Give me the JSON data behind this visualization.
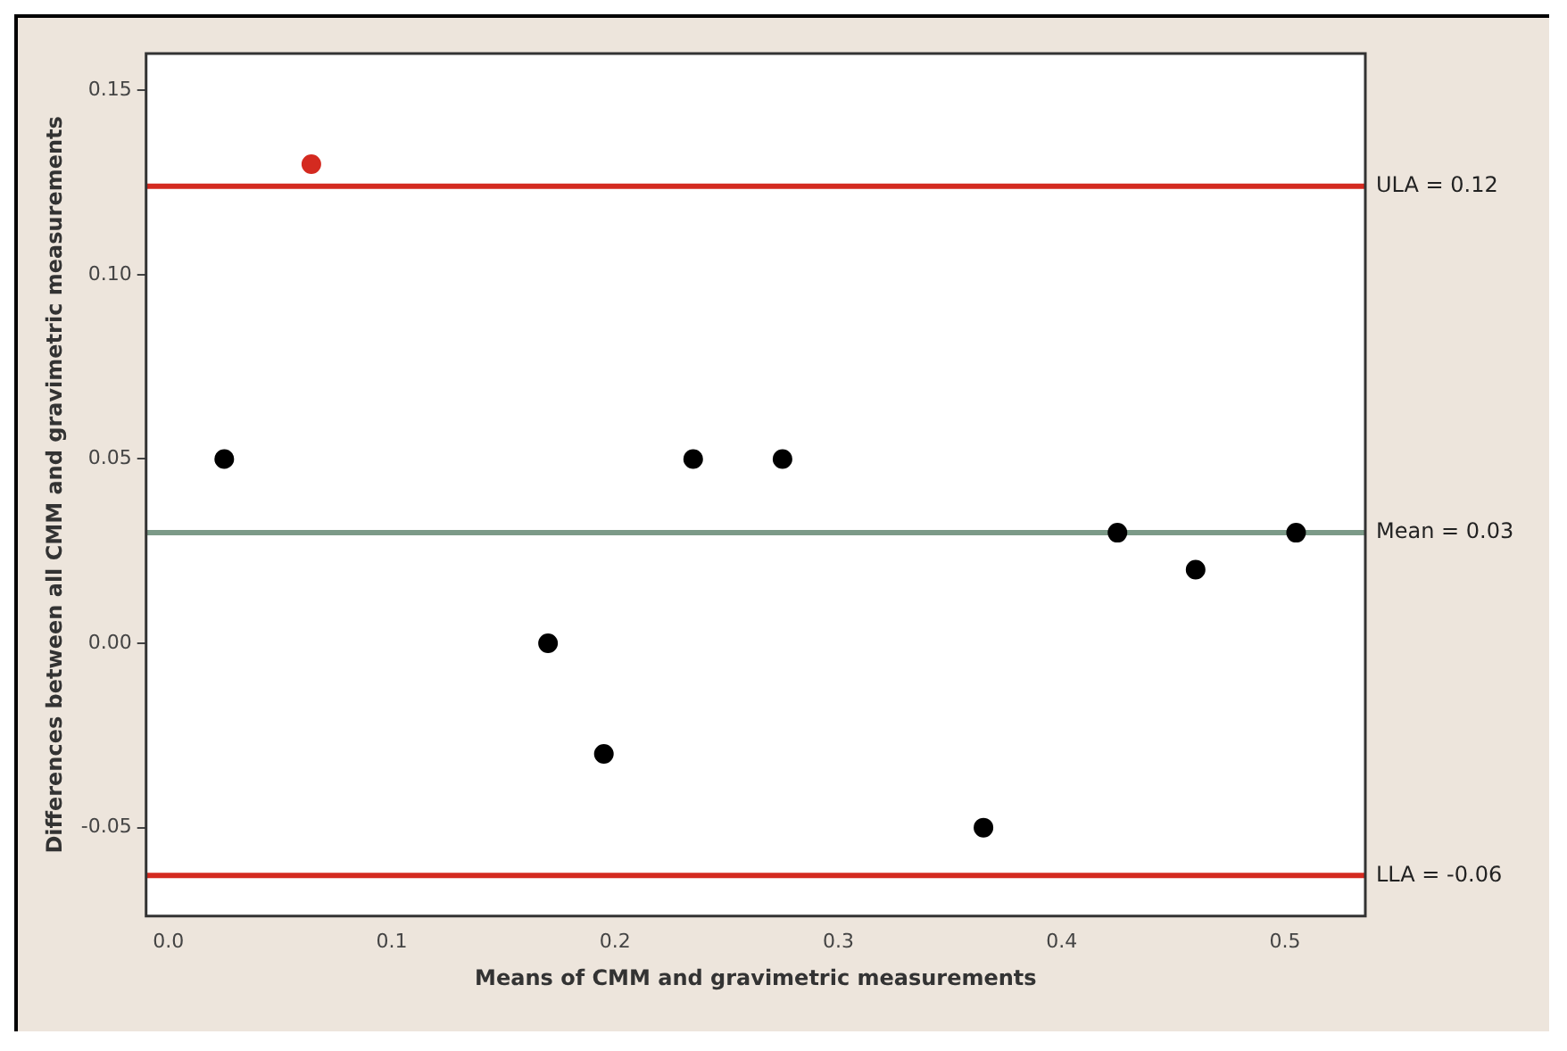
{
  "chart_data": {
    "type": "scatter",
    "xlabel": "Means of CMM and gravimetric measurements",
    "ylabel": "Differences between all CMM and gravimetric measurements",
    "x": [
      0.025,
      0.064,
      0.17,
      0.195,
      0.235,
      0.275,
      0.365,
      0.425,
      0.46,
      0.505
    ],
    "values": [
      0.05,
      0.13,
      0.0,
      -0.03,
      0.05,
      0.05,
      -0.05,
      0.03,
      0.02,
      0.03
    ],
    "colors": [
      "#000000",
      "#d42a20",
      "#000000",
      "#000000",
      "#000000",
      "#000000",
      "#000000",
      "#000000",
      "#000000",
      "#000000"
    ],
    "marker": "circle",
    "xlim": [
      -0.01,
      0.536
    ],
    "xticks": [
      {
        "value": 0,
        "label": "0.0"
      },
      0.1,
      0.2,
      0.3,
      0.4,
      0.5
    ],
    "ylim": [
      -0.074,
      0.16
    ],
    "yticks": [
      {
        "value": -0.05,
        "label": "-0.05"
      },
      {
        "value": 0,
        "label": "0.00"
      },
      0.05,
      {
        "value": 0.1,
        "label": "0.10"
      },
      0.15
    ],
    "ref_lines": [
      {
        "axis": "y",
        "value": 0.124,
        "label": "ULA = 0.12",
        "color": "#d42a20"
      },
      {
        "axis": "y",
        "value": 0.03,
        "label": "Mean = 0.03",
        "color": "#7c9a88"
      },
      {
        "axis": "y",
        "value": -0.063,
        "label": "LLA = -0.06",
        "color": "#d42a20"
      }
    ],
    "grid": false,
    "legend": false
  }
}
